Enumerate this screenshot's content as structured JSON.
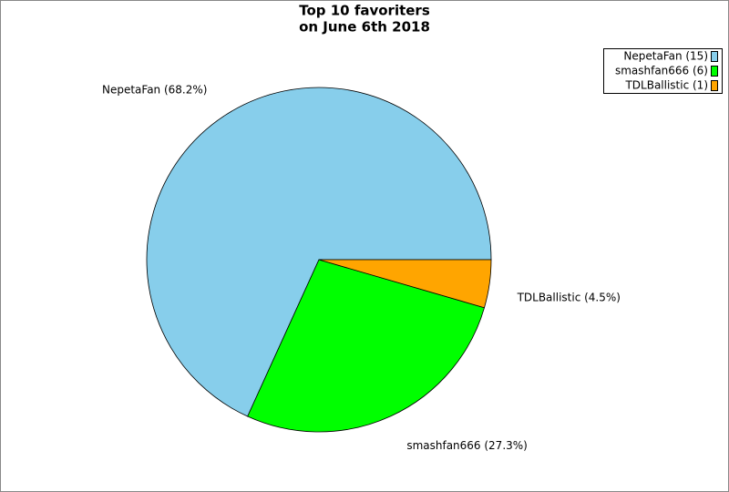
{
  "chart_data": {
    "type": "pie",
    "title": [
      "Top 10 favoriters",
      "on June 6th 2018"
    ],
    "values": [
      68.2,
      27.3,
      4.5
    ],
    "labels": [
      "NepetaFan (68.2%)",
      "smashfan666 (27.3%)",
      "TDLBallistic (4.5%)"
    ],
    "legend_labels": [
      "NepetaFan (15)",
      "smashfan666 (6)",
      "TDLBallistic (1)"
    ],
    "colors": [
      "#87ceeb",
      "#00ff00",
      "#ffa500"
    ],
    "legend": "top-right"
  }
}
